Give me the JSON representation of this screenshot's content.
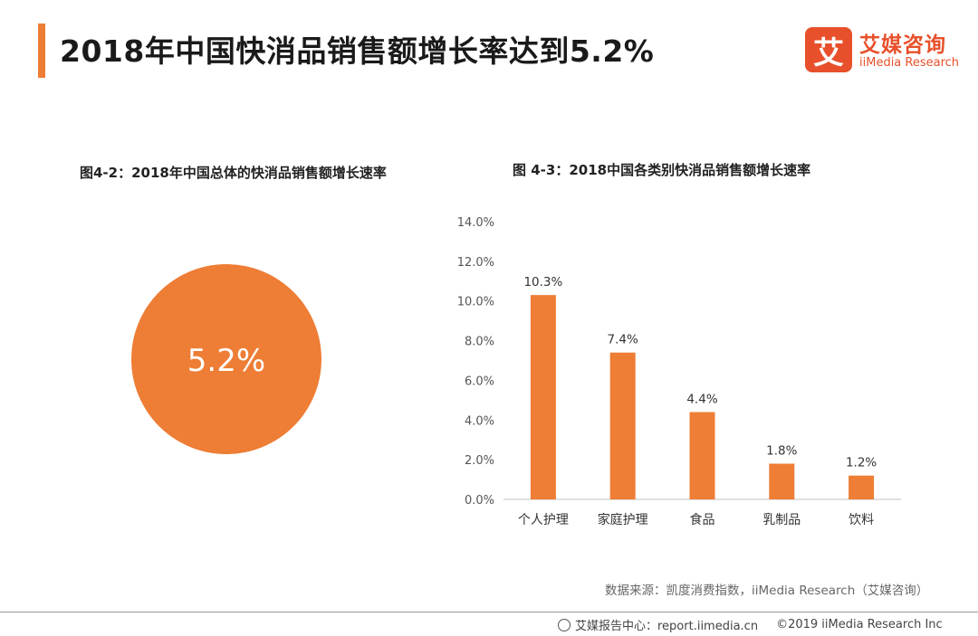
{
  "header": {
    "title": "2018年中国快消品销售额增长率达到5.2%",
    "accent_color": "#ee7d35"
  },
  "logo": {
    "mark": "艾",
    "name_cn": "艾媒咨询",
    "name_en": "iiMedia Research",
    "color": "#e8502b"
  },
  "figures": {
    "fig2_title": "图4-2：2018年中国总体的快消品销售额增长速率",
    "fig3_title": "图 4-3：2018中国各类别快消品销售额增长速率"
  },
  "chart_data": [
    {
      "type": "pie",
      "title": "图4-2：2018年中国总体的快消品销售额增长速率",
      "values": [
        5.2
      ],
      "labels": [
        "5.2%"
      ],
      "color": "#ee7d35"
    },
    {
      "type": "bar",
      "title": "图 4-3：2018中国各类别快消品销售额增长速率",
      "categories": [
        "个人护理",
        "家庭护理",
        "食品",
        "乳制品",
        "饮料"
      ],
      "values": [
        10.3,
        7.4,
        4.4,
        1.8,
        1.2
      ],
      "value_labels": [
        "10.3%",
        "7.4%",
        "4.4%",
        "1.8%",
        "1.2%"
      ],
      "yticks": [
        "0.0%",
        "2.0%",
        "4.0%",
        "6.0%",
        "8.0%",
        "10.0%",
        "12.0%",
        "14.0%"
      ],
      "ylim": [
        0,
        14
      ],
      "xlabel": "",
      "ylabel": "",
      "grid": false,
      "color": "#ee7d35"
    }
  ],
  "source": "数据来源：凯度消费指数，iiMedia Research（艾媒咨询）",
  "footer": {
    "report_center": "艾媒报告中心：report.iimedia.cn",
    "copyright": "©2019  iiMedia Research  Inc"
  }
}
